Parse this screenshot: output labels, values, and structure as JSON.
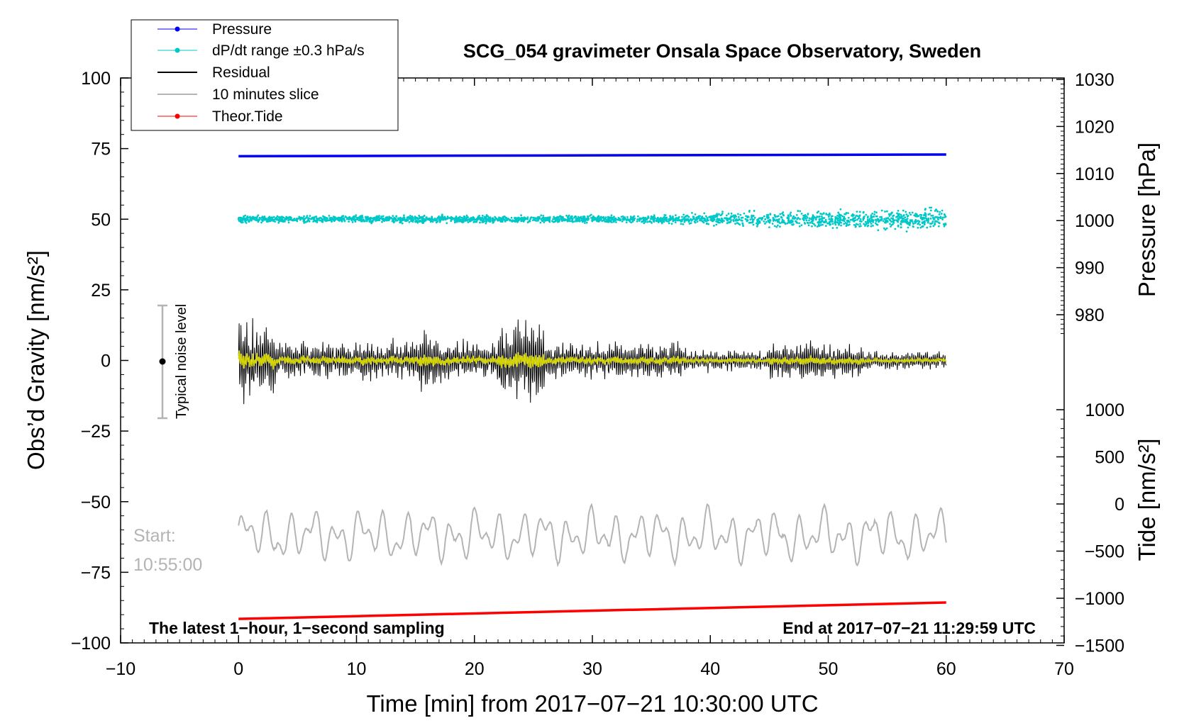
{
  "chart_data": {
    "type": "line",
    "title": "SCG_054 gravimeter Onsala Space Observatory, Sweden",
    "xlabel": "Time [min] from 2017−07−21 10:30:00 UTC",
    "xlim": [
      -10,
      70
    ],
    "x_ticks": [
      "−10",
      "0",
      "10",
      "20",
      "30",
      "40",
      "50",
      "60",
      "70"
    ],
    "y_left": {
      "label": "Obs’d Gravity [nm/s²]",
      "lim": [
        -100,
        100
      ],
      "ticks": [
        "100",
        "75",
        "50",
        "25",
        "0",
        "−25",
        "−50",
        "−75",
        "−100"
      ]
    },
    "y_right_pressure": {
      "label": "Pressure [hPa]",
      "ticks": [
        "1030",
        "1020",
        "1010",
        "1000",
        "990",
        "980"
      ]
    },
    "y_right_tide": {
      "label": "Tide [nm/s²]",
      "ticks": [
        "1000",
        "500",
        "0",
        "−500",
        "−1000",
        "−1500"
      ]
    },
    "legend": {
      "placement": "top-left",
      "entries": [
        {
          "name": "Pressure",
          "color": "#0000ee",
          "marker": true
        },
        {
          "name": "dP/dt range ±0.3 hPa/s",
          "color": "#00c8c8",
          "marker": true
        },
        {
          "name": "Residual",
          "color": "#000000",
          "marker": false
        },
        {
          "name": "10 minutes slice",
          "color": "#b4b4b4",
          "marker": false
        },
        {
          "name": "Theor.Tide",
          "color": "#ff0000",
          "marker": true
        }
      ]
    },
    "series": [
      {
        "name": "Pressure",
        "color": "#0000ee",
        "x": [
          0,
          60
        ],
        "y": [
          72.3,
          72.9
        ]
      },
      {
        "name": "dP/dt range ±0.3 hPa/s",
        "color": "#00c8c8",
        "x": [
          0,
          60
        ],
        "y_center": 50,
        "spread": 5
      },
      {
        "name": "Residual",
        "color": "#000000",
        "x": [
          0,
          60
        ],
        "y_center": 0,
        "amplitude_max": 24
      },
      {
        "name": "10 minutes slice",
        "color": "#b4b4b4",
        "x": [
          0,
          60
        ],
        "y_center": -62,
        "amplitude": 12
      },
      {
        "name": "Theor.Tide",
        "color": "#ff0000",
        "x": [
          0,
          60
        ],
        "y": [
          -91.5,
          -85.7
        ]
      }
    ],
    "smoothed_color": "#d4d400",
    "grid": false,
    "noise_bar": {
      "label": "Typical noise level",
      "x": -7,
      "y_center": 0,
      "half_range": 20
    },
    "annotations": {
      "start_label": "Start:",
      "start_time": "10:55:00",
      "bottom_left": "The latest 1−hour, 1−second sampling",
      "bottom_right": "End at 2017−07−21 11:29:59 UTC"
    }
  }
}
